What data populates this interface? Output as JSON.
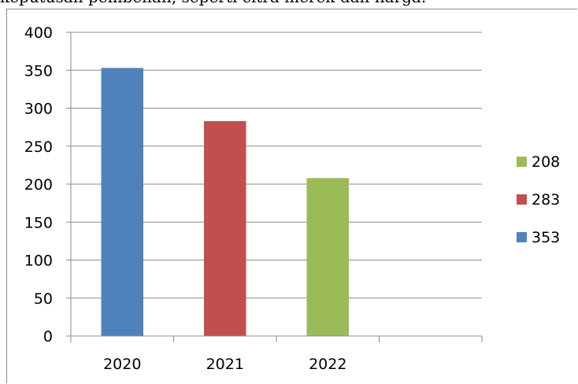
{
  "header_fragment": "keputusan pembelian, seperti citra merek dan harga.",
  "chart_data": {
    "type": "bar",
    "categories": [
      "2020",
      "2021",
      "2022",
      ""
    ],
    "values": [
      353,
      283,
      208,
      null
    ],
    "bar_colors": [
      "#4f81bd",
      "#c0504d",
      "#9bbb59"
    ],
    "ylim": [
      0,
      400
    ],
    "yticks": [
      0,
      50,
      100,
      150,
      200,
      250,
      300,
      350,
      400
    ],
    "grid": true,
    "legend_position": "right",
    "legend": [
      {
        "label": "208",
        "color": "#9bbb59"
      },
      {
        "label": "283",
        "color": "#c0504d"
      },
      {
        "label": "353",
        "color": "#4f81bd"
      }
    ]
  }
}
